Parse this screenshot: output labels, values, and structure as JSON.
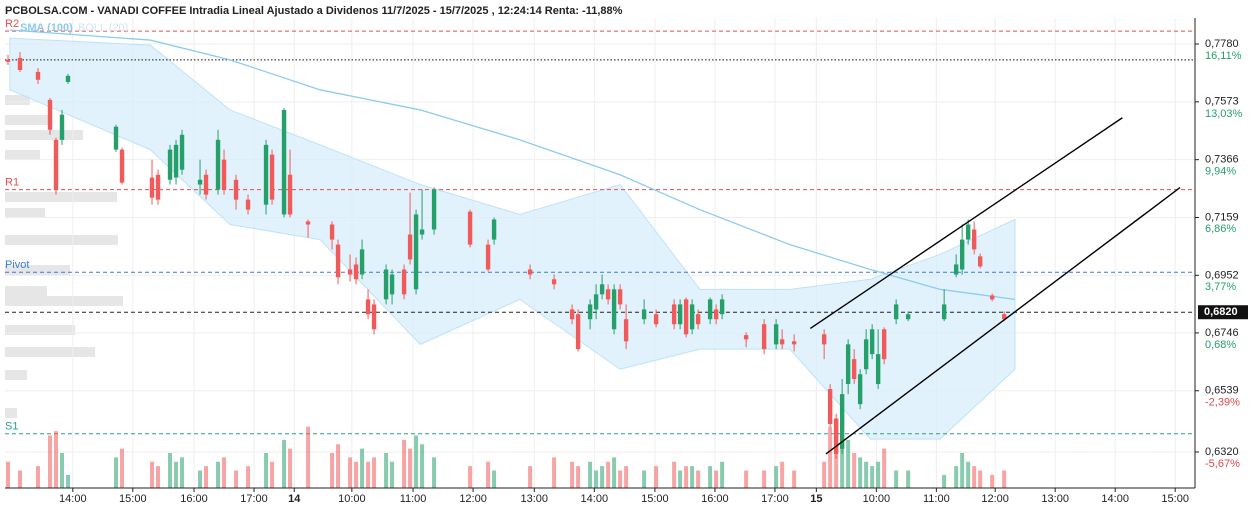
{
  "chart_data": {
    "type": "candlestick",
    "title": "PCBOLSA.COM - VANADI COFFEE Intradia Lineal Ajustado a Dividenos 11/7/2025 - 15/7/2025 , 12:24:14 Renta: -11,88%",
    "xlim": [
      -0.5,
      197.8
    ],
    "xticks": [
      {
        "value": 10.8,
        "label": "14:00"
      },
      {
        "value": 20.8,
        "label": "15:00"
      },
      {
        "value": 31,
        "label": "16:00"
      },
      {
        "value": 41,
        "label": "17:00"
      },
      {
        "value": 47.7,
        "label": "14"
      },
      {
        "value": 57.3,
        "label": "10:00"
      },
      {
        "value": 67.5,
        "label": "11:00"
      },
      {
        "value": 77.5,
        "label": "12:00"
      },
      {
        "value": 87.7,
        "label": "13:00"
      },
      {
        "value": 97.7,
        "label": "14:00"
      },
      {
        "value": 107.8,
        "label": "15:00"
      },
      {
        "value": 117.8,
        "label": "16:00"
      },
      {
        "value": 127.8,
        "label": "17:00"
      },
      {
        "value": 134.7,
        "label": "15"
      },
      {
        "value": 144.7,
        "label": "10:00"
      },
      {
        "value": 154.7,
        "label": "11:00"
      },
      {
        "value": 164.5,
        "label": "12:00"
      },
      {
        "value": 174.5,
        "label": "13:00"
      },
      {
        "value": 184.5,
        "label": "14:00"
      },
      {
        "value": 194.5,
        "label": "15:00"
      }
    ],
    "ylim": [
      0.6191,
      0.7873
    ],
    "yticks": [
      {
        "value": 0.778,
        "label": "0,7780"
      },
      {
        "value": 0.7573,
        "label": "0,7573"
      },
      {
        "value": 0.7366,
        "label": "0,7366"
      },
      {
        "value": 0.7159,
        "label": "0,7159"
      },
      {
        "value": 0.6952,
        "label": "0,6952"
      },
      {
        "value": 0.6746,
        "label": "0,6746"
      },
      {
        "value": 0.6539,
        "label": "0,6539"
      },
      {
        "value": 0.632,
        "label": "0,6320"
      }
    ],
    "y2lim": [
      -7.6,
      17.51
    ],
    "y2ticks": [
      {
        "value": 16.11,
        "label": "16,11%"
      },
      {
        "value": 13.03,
        "label": "13,03%"
      },
      {
        "value": 9.94,
        "label": "9,94%"
      },
      {
        "value": 6.86,
        "label": "6,86%"
      },
      {
        "value": 3.77,
        "label": "3,77%"
      },
      {
        "value": 0.68,
        "label": "0,68%"
      },
      {
        "value": -2.39,
        "label": "-2,39%"
      },
      {
        "value": -5.67,
        "label": "-5,67%"
      }
    ],
    "grid": true,
    "up_color": "#26a06b",
    "down_color": "#f05a5a",
    "candles": {
      "x": [
        0,
        2,
        5,
        7,
        8,
        9,
        10,
        18,
        19,
        24,
        25,
        27,
        28,
        29,
        32,
        33,
        35,
        36,
        38,
        40,
        43,
        44,
        46,
        47,
        50,
        54,
        55,
        57,
        58,
        59,
        60,
        61,
        63,
        64,
        66,
        67,
        68,
        69,
        71,
        77,
        80,
        81,
        87,
        91,
        94,
        95,
        97,
        98,
        99,
        100,
        101,
        102,
        103,
        106,
        108,
        111,
        112,
        113,
        114,
        115,
        117,
        118,
        119,
        123,
        126,
        128,
        129,
        131,
        136,
        137,
        138,
        139,
        140,
        141,
        142,
        143,
        144,
        145,
        146,
        148,
        150,
        156,
        158,
        159,
        160,
        161,
        162,
        164,
        166
      ],
      "open": [
        0.7723,
        0.773,
        0.768,
        0.758,
        0.7437,
        0.7437,
        0.7644,
        0.7402,
        0.7402,
        0.7302,
        0.7312,
        0.7294,
        0.7302,
        0.733,
        0.7277,
        0.7312,
        0.7259,
        0.7366,
        0.7294,
        0.7223,
        0.7205,
        0.7384,
        0.717,
        0.7312,
        0.7145,
        0.7134,
        0.7062,
        0.6973,
        0.6991,
        0.6955,
        0.6866,
        0.6848,
        0.6866,
        0.6884,
        0.6973,
        0.7098,
        0.6902,
        0.7098,
        0.7116,
        0.718,
        0.7062,
        0.708,
        0.6973,
        0.6938,
        0.683,
        0.6813,
        0.6795,
        0.683,
        0.6884,
        0.6902,
        0.6759,
        0.6902,
        0.6795,
        0.6795,
        0.6813,
        0.6848,
        0.6777,
        0.6866,
        0.6759,
        0.6813,
        0.6795,
        0.683,
        0.6813,
        0.6738,
        0.6777,
        0.6705,
        0.6723,
        0.6716,
        0.6741,
        0.6545,
        0.6438,
        0.6331,
        0.6563,
        0.6652,
        0.6491,
        0.6616,
        0.667,
        0.6563,
        0.6759,
        0.6795,
        0.6795,
        0.6795,
        0.6955,
        0.6973,
        0.708,
        0.7116,
        0.702,
        0.688,
        0.6813
      ],
      "high": [
        0.7741,
        0.7751,
        0.7694,
        0.7587,
        0.7444,
        0.7544,
        0.7673,
        0.7491,
        0.7409,
        0.7366,
        0.733,
        0.7419,
        0.7437,
        0.7473,
        0.7366,
        0.733,
        0.7473,
        0.7402,
        0.7312,
        0.7241,
        0.7437,
        0.7402,
        0.7551,
        0.7402,
        0.7152,
        0.7145,
        0.708,
        0.7027,
        0.7016,
        0.708,
        0.6902,
        0.6866,
        0.6991,
        0.6973,
        0.6991,
        0.7248,
        0.7187,
        0.7259,
        0.7266,
        0.7187,
        0.708,
        0.7159,
        0.6991,
        0.6955,
        0.6848,
        0.683,
        0.6866,
        0.692,
        0.6955,
        0.692,
        0.692,
        0.692,
        0.6848,
        0.6866,
        0.683,
        0.6866,
        0.6866,
        0.6873,
        0.6866,
        0.683,
        0.6873,
        0.6848,
        0.6884,
        0.6748,
        0.6795,
        0.6795,
        0.6759,
        0.6741,
        0.6759,
        0.6563,
        0.6456,
        0.6581,
        0.6723,
        0.6688,
        0.6616,
        0.6759,
        0.6777,
        0.6759,
        0.6766,
        0.6866,
        0.6823,
        0.6902,
        0.7027,
        0.7134,
        0.7152,
        0.7145,
        0.703,
        0.6887,
        0.6823
      ],
      "low": [
        0.7705,
        0.768,
        0.7637,
        0.7455,
        0.7241,
        0.7419,
        0.7637,
        0.7394,
        0.7277,
        0.7205,
        0.7205,
        0.7277,
        0.7277,
        0.7312,
        0.7241,
        0.7223,
        0.7241,
        0.7241,
        0.7187,
        0.717,
        0.717,
        0.7205,
        0.7159,
        0.7159,
        0.7087,
        0.7045,
        0.692,
        0.693,
        0.692,
        0.6938,
        0.6795,
        0.6741,
        0.6848,
        0.6848,
        0.6866,
        0.6991,
        0.6884,
        0.708,
        0.7098,
        0.7052,
        0.6966,
        0.7062,
        0.6938,
        0.6902,
        0.6777,
        0.668,
        0.6759,
        0.6795,
        0.6866,
        0.6848,
        0.6741,
        0.683,
        0.6688,
        0.6777,
        0.6766,
        0.6759,
        0.6759,
        0.673,
        0.6741,
        0.6759,
        0.6777,
        0.6777,
        0.6795,
        0.6695,
        0.667,
        0.6688,
        0.6688,
        0.668,
        0.6652,
        0.6409,
        0.6295,
        0.6313,
        0.6527,
        0.6563,
        0.6473,
        0.6598,
        0.6652,
        0.6545,
        0.6634,
        0.6777,
        0.6788,
        0.6788,
        0.6945,
        0.6955,
        0.7062,
        0.7027,
        0.6977,
        0.6859,
        0.6788
      ],
      "close": [
        0.7716,
        0.7687,
        0.7652,
        0.7473,
        0.7259,
        0.7527,
        0.7666,
        0.7484,
        0.7284,
        0.723,
        0.7223,
        0.7402,
        0.7419,
        0.7455,
        0.7294,
        0.7241,
        0.7437,
        0.7259,
        0.7223,
        0.7187,
        0.7419,
        0.7223,
        0.7544,
        0.717,
        0.7134,
        0.708,
        0.6945,
        0.6955,
        0.6938,
        0.7045,
        0.6813,
        0.6759,
        0.6973,
        0.6955,
        0.6884,
        0.7009,
        0.717,
        0.7116,
        0.7259,
        0.7062,
        0.6973,
        0.7152,
        0.6955,
        0.692,
        0.6795,
        0.6688,
        0.6848,
        0.6884,
        0.692,
        0.6866,
        0.6902,
        0.6848,
        0.6716,
        0.683,
        0.6777,
        0.6777,
        0.6848,
        0.6741,
        0.6848,
        0.6777,
        0.6866,
        0.6795,
        0.6866,
        0.6723,
        0.6688,
        0.6777,
        0.6705,
        0.6705,
        0.6705,
        0.642,
        0.6313,
        0.6527,
        0.6705,
        0.6581,
        0.6598,
        0.6723,
        0.6759,
        0.667,
        0.6652,
        0.6848,
        0.6813,
        0.6848,
        0.6991,
        0.708,
        0.7134,
        0.7045,
        0.6984,
        0.6866,
        0.6795
      ],
      "volume": [
        30,
        20,
        25,
        60,
        65,
        40,
        15,
        35,
        45,
        30,
        25,
        40,
        30,
        35,
        20,
        25,
        30,
        35,
        20,
        25,
        40,
        30,
        55,
        45,
        70,
        40,
        50,
        35,
        30,
        45,
        30,
        35,
        40,
        30,
        55,
        45,
        60,
        50,
        35,
        25,
        30,
        20,
        25,
        35,
        30,
        25,
        30,
        20,
        25,
        30,
        35,
        20,
        25,
        20,
        25,
        30,
        20,
        25,
        25,
        20,
        25,
        20,
        30,
        20,
        20,
        25,
        30,
        20,
        30,
        70,
        80,
        60,
        55,
        40,
        35,
        30,
        25,
        30,
        45,
        20,
        20,
        15,
        25,
        40,
        30,
        25,
        20,
        15,
        20
      ]
    },
    "sma": {
      "name": "SMA (100)",
      "color": "#8ccbf0",
      "x": [
        0.3,
        23.7,
        37,
        52,
        68.7,
        85.3,
        102,
        115.3,
        130.3,
        143.7,
        155.3,
        167.8
      ],
      "values": [
        0.783,
        0.7794,
        0.7723,
        0.7616,
        0.7544,
        0.7437,
        0.7312,
        0.7187,
        0.7062,
        0.6973,
        0.6902,
        0.6866
      ]
    },
    "bollinger": {
      "name": "BOLL (20)",
      "color": "#d8eefb",
      "x": [
        0.3,
        23.7,
        37,
        52,
        68.7,
        85.3,
        102,
        115.3,
        130.3,
        143.7,
        155.3,
        167.8
      ],
      "upper": [
        0.7801,
        0.7776,
        0.7544,
        0.7419,
        0.7277,
        0.717,
        0.7277,
        0.6902,
        0.6902,
        0.6938,
        0.7027,
        0.7152
      ],
      "lower": [
        0.7616,
        0.7402,
        0.7134,
        0.708,
        0.6705,
        0.6866,
        0.6616,
        0.6688,
        0.6688,
        0.6366,
        0.6366,
        0.6616
      ]
    },
    "levels": [
      {
        "name": "R2",
        "value": 0.7826,
        "color": "#e05050",
        "style": "dashed"
      },
      {
        "value": 0.7723,
        "color": "#111111",
        "style": "dotted"
      },
      {
        "name": "R1",
        "value": 0.7259,
        "color": "#e05050",
        "style": "dashed"
      },
      {
        "name": "Pivot",
        "value": 0.6963,
        "color": "#3a7bd5",
        "style": "dashed"
      },
      {
        "name": "S1",
        "value": 0.6385,
        "color": "#2a9d8f",
        "style": "dashed"
      }
    ],
    "current_price": {
      "value": 0.682,
      "label": "0,6820"
    },
    "trendlines": [
      {
        "x": [
          133.7,
          185.7
        ],
        "values": [
          0.6762,
          0.7516
        ]
      },
      {
        "x": [
          136.3,
          195.3
        ],
        "values": [
          0.6313,
          0.7266
        ]
      }
    ]
  }
}
